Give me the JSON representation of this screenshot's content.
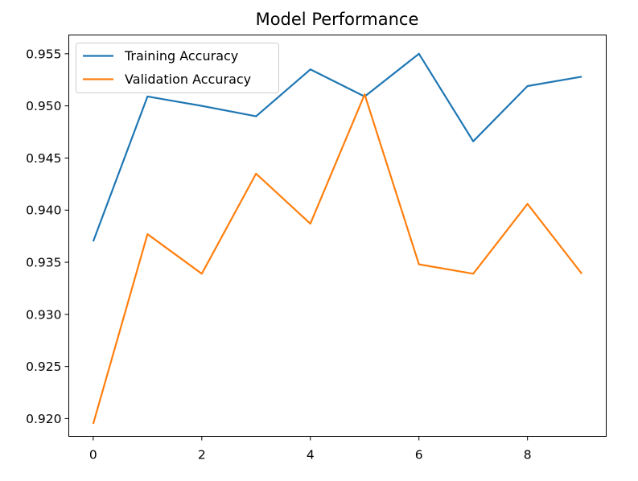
{
  "chart_data": {
    "type": "line",
    "title": "Model Performance",
    "xlabel": "",
    "ylabel": "",
    "x": [
      0,
      1,
      2,
      3,
      4,
      5,
      6,
      7,
      8,
      9
    ],
    "xlim": [
      -0.45,
      9.45
    ],
    "ylim": [
      0.9183,
      0.9568
    ],
    "xticks": [
      0,
      2,
      4,
      6,
      8
    ],
    "yticks": [
      0.92,
      0.925,
      0.93,
      0.935,
      0.94,
      0.945,
      0.95,
      0.955
    ],
    "ytick_labels": [
      "0.920",
      "0.925",
      "0.930",
      "0.935",
      "0.940",
      "0.945",
      "0.950",
      "0.955"
    ],
    "grid": false,
    "legend_position": "top-left",
    "series": [
      {
        "name": "Training Accuracy",
        "color": "#1f77b4",
        "values": [
          0.937,
          0.9509,
          0.95,
          0.949,
          0.9535,
          0.9509,
          0.955,
          0.9466,
          0.9519,
          0.9528
        ]
      },
      {
        "name": "Validation Accuracy",
        "color": "#ff7f0e",
        "values": [
          0.9195,
          0.9377,
          0.9339,
          0.9435,
          0.9387,
          0.9511,
          0.9348,
          0.9339,
          0.9406,
          0.9339
        ]
      }
    ]
  }
}
